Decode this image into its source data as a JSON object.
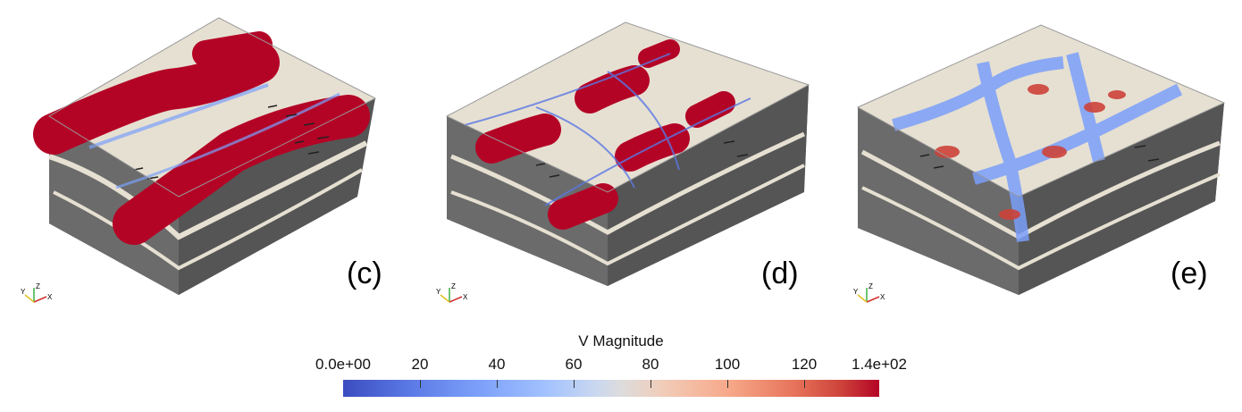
{
  "panels": [
    {
      "label": "(c)"
    },
    {
      "label": "(d)"
    },
    {
      "label": "(e)"
    }
  ],
  "axes_glyph": {
    "y": "Y",
    "z": "Z",
    "x": "X"
  },
  "colorbar": {
    "title": "V Magnitude",
    "ticks": [
      "0.0e+00",
      "20",
      "40",
      "60",
      "80",
      "100",
      "120",
      "1.4e+02"
    ],
    "colormap": "cool-to-warm",
    "colors": {
      "low": "#3b4cc0",
      "mid": "#dddcdc",
      "high": "#b40426"
    }
  },
  "colors": {
    "slab_top": "#e6e0d2",
    "slab_side": "#5a5a5a",
    "slab_front": "#6b6b6b",
    "streak_red": "#b40426",
    "streak_blue": "#7b9ff9"
  }
}
